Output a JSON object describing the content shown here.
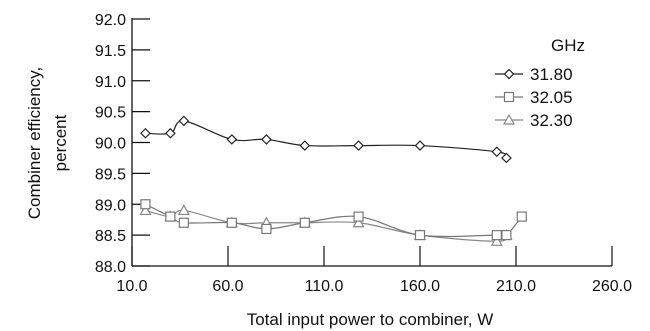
{
  "chart_data": {
    "type": "line",
    "title": "",
    "xlabel": "Total input power to combiner, W",
    "ylabel_lines": [
      "Combiner efficiency,",
      "percent"
    ],
    "xlim": [
      10,
      260
    ],
    "ylim": [
      88.0,
      92.0
    ],
    "x_ticks": [
      10,
      60,
      110,
      160,
      210,
      260
    ],
    "x_tick_labels": [
      "10.0",
      "60.0",
      "110.0",
      "160.0",
      "210.0",
      "260.0"
    ],
    "y_ticks": [
      88.0,
      88.5,
      89.0,
      89.5,
      90.0,
      90.5,
      91.0,
      91.5,
      92.0
    ],
    "y_tick_labels": [
      "88.0",
      "88.5",
      "89.0",
      "89.5",
      "90.0",
      "90.5",
      "91.0",
      "91.5",
      "92.0"
    ],
    "grid": false,
    "legend_title": "GHz",
    "legend_position": "top-right",
    "series": [
      {
        "name": "31.80",
        "marker": "diamond",
        "color": "#222222",
        "x": [
          17,
          30,
          37,
          62,
          80,
          100,
          128,
          160,
          200,
          205
        ],
        "y": [
          90.15,
          90.15,
          90.35,
          90.05,
          90.05,
          89.95,
          89.95,
          89.95,
          89.85,
          89.75
        ]
      },
      {
        "name": "32.05",
        "marker": "square",
        "color": "#777777",
        "x": [
          17,
          30,
          37,
          62,
          80,
          100,
          128,
          160,
          200,
          205,
          213
        ],
        "y": [
          89.0,
          88.8,
          88.7,
          88.7,
          88.6,
          88.7,
          88.8,
          88.5,
          88.5,
          88.5,
          88.8
        ]
      },
      {
        "name": "32.30",
        "marker": "triangle",
        "color": "#888888",
        "x": [
          17,
          30,
          37,
          62,
          80,
          100,
          128,
          160,
          200,
          205
        ],
        "y": [
          88.9,
          88.8,
          88.9,
          88.7,
          88.7,
          88.7,
          88.7,
          88.5,
          88.4,
          88.5
        ]
      }
    ]
  }
}
